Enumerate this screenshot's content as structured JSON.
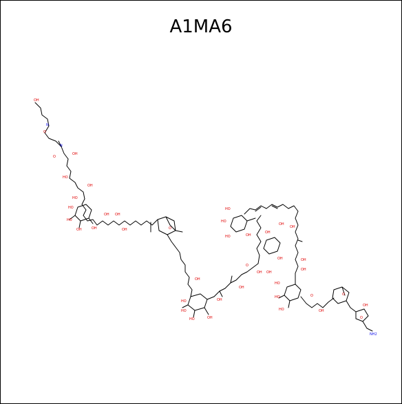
{
  "title": "A1MA6",
  "atom_labels": {
    "hydroxyl": "OH",
    "ho": "HO",
    "oxygen": "O",
    "nh": "N",
    "amine": "NH2"
  },
  "colors": {
    "bond": "#000000",
    "oxygen": "#e00000",
    "nitrogen": "#1010ee",
    "background": "#ffffff"
  }
}
